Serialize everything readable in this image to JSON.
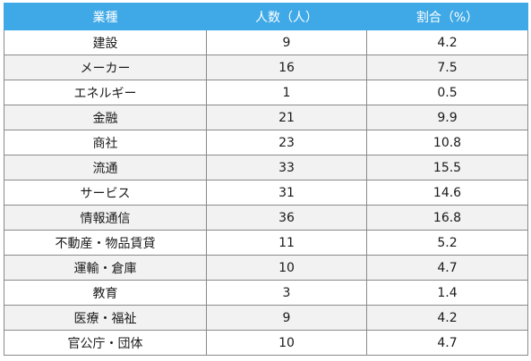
{
  "table": {
    "headers": [
      "業種",
      "人数（人）",
      "割合（%）"
    ],
    "rows": [
      [
        "建設",
        "9",
        "4.2"
      ],
      [
        "メーカー",
        "16",
        "7.5"
      ],
      [
        "エネルギー",
        "1",
        "0.5"
      ],
      [
        "金融",
        "21",
        "9.9"
      ],
      [
        "商社",
        "23",
        "10.8"
      ],
      [
        "流通",
        "33",
        "15.5"
      ],
      [
        "サービス",
        "31",
        "14.6"
      ],
      [
        "情報通信",
        "36",
        "16.8"
      ],
      [
        "不動産・物品賃貸",
        "11",
        "5.2"
      ],
      [
        "運輸・倉庫",
        "10",
        "4.7"
      ],
      [
        "教育",
        "3",
        "1.4"
      ],
      [
        "医療・福祉",
        "9",
        "4.2"
      ],
      [
        "官公庁・団体",
        "10",
        "4.7"
      ]
    ]
  }
}
